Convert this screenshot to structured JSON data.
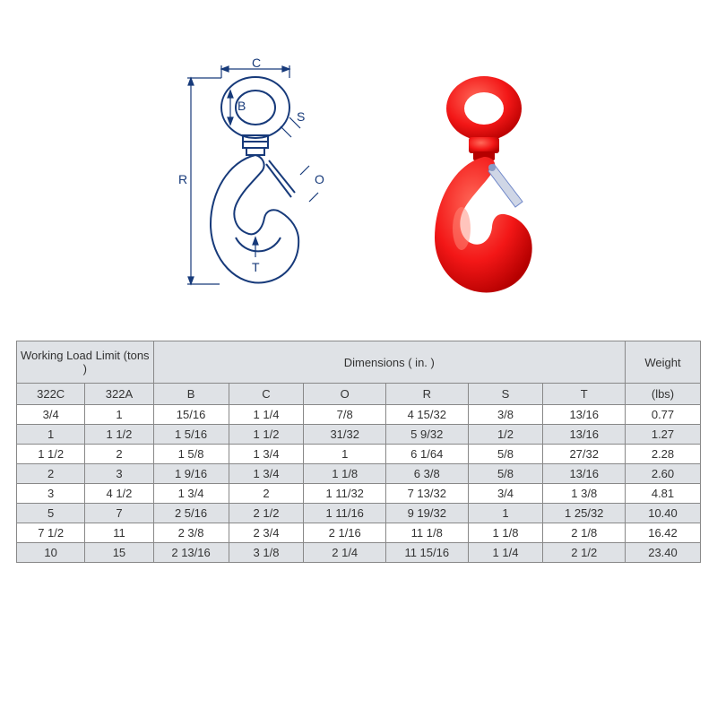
{
  "diagram": {
    "labels": {
      "B": "B",
      "C": "C",
      "O": "O",
      "R": "R",
      "S": "S",
      "T": "T"
    },
    "line_color": "#173a7a",
    "product_color": "#f31717",
    "latch_color": "#6f87c9"
  },
  "table": {
    "header_bg": "#dfe2e6",
    "alt_row_bg": "#dfe2e6",
    "border_color": "#888888",
    "group_headers": {
      "wll": "Working Load Limit (tons )",
      "dims": "Dimensions ( in. )",
      "weight": "Weight"
    },
    "sub_headers": [
      "322C",
      "322A",
      "B",
      "C",
      "O",
      "R",
      "S",
      "T",
      "(lbs)"
    ],
    "col_widths_pct": [
      10,
      10,
      11,
      11,
      12,
      12,
      11,
      12,
      11
    ],
    "rows": [
      [
        "3/4",
        "1",
        "15/16",
        "1 1/4",
        "7/8",
        "4 15/32",
        "3/8",
        "13/16",
        "0.77"
      ],
      [
        "1",
        "1 1/2",
        "1 5/16",
        "1 1/2",
        "31/32",
        "5 9/32",
        "1/2",
        "13/16",
        "1.27"
      ],
      [
        "1 1/2",
        "2",
        "1 5/8",
        "1 3/4",
        "1",
        "6 1/64",
        "5/8",
        "27/32",
        "2.28"
      ],
      [
        "2",
        "3",
        "1 9/16",
        "1 3/4",
        "1 1/8",
        "6 3/8",
        "5/8",
        "13/16",
        "2.60"
      ],
      [
        "3",
        "4 1/2",
        "1 3/4",
        "2",
        "1 11/32",
        "7 13/32",
        "3/4",
        "1 3/8",
        "4.81"
      ],
      [
        "5",
        "7",
        "2 5/16",
        "2 1/2",
        "1 11/16",
        "9 19/32",
        "1",
        "1 25/32",
        "10.40"
      ],
      [
        "7 1/2",
        "11",
        "2 3/8",
        "2 3/4",
        "2 1/16",
        "11 1/8",
        "1 1/8",
        "2 1/8",
        "16.42"
      ],
      [
        "10",
        "15",
        "2 13/16",
        "3 1/8",
        "2 1/4",
        "11 15/16",
        "1 1/4",
        "2 1/2",
        "23.40"
      ]
    ]
  }
}
